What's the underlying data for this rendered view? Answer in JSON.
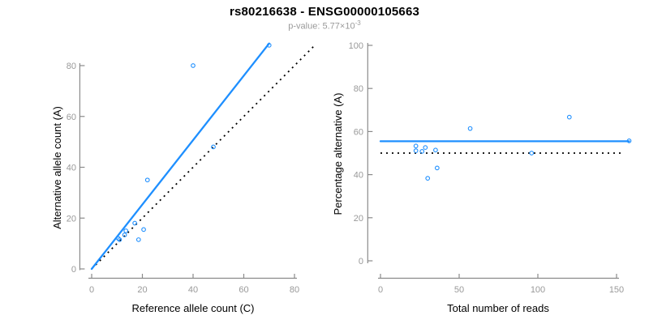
{
  "header": {
    "title": "rs80216638 - ENSG00000105663",
    "pvalue_label": "p-value: ",
    "pvalue_mantissa": "5.77",
    "pvalue_times": "×",
    "pvalue_base": "10",
    "pvalue_exponent": "-3"
  },
  "colors": {
    "accent_blue": "#1e8fff",
    "axis_line_gray": "#8a8a8a",
    "tick_label_gray": "#999999",
    "axis_title_black": "#000000",
    "identity_line_black": "#000000",
    "background": "#ffffff"
  },
  "chart_data": [
    {
      "id": "allele-counts-scatter",
      "type": "scatter",
      "xlabel": "Reference allele count (C)",
      "ylabel": "Alternative allele count (A)",
      "xticks": [
        0,
        20,
        40,
        60,
        80
      ],
      "yticks": [
        0,
        20,
        40,
        60,
        80
      ],
      "xlim": [
        0,
        88
      ],
      "ylim": [
        0,
        90
      ],
      "grid": false,
      "points": [
        [
          40,
          80
        ],
        [
          70,
          88
        ],
        [
          48,
          48
        ],
        [
          22,
          35
        ],
        [
          17,
          18
        ],
        [
          20.5,
          15.5
        ],
        [
          13.5,
          15
        ],
        [
          13,
          13.4
        ],
        [
          10.5,
          12
        ],
        [
          18.5,
          11.5
        ],
        [
          11,
          11.5
        ]
      ],
      "fit_line": {
        "style": "solid",
        "x1": 0,
        "y1": 0,
        "x2": 70,
        "y2": 88.7
      },
      "identity_line": {
        "style": "dotted",
        "x1": 0,
        "y1": 0,
        "x2": 88,
        "y2": 88
      }
    },
    {
      "id": "percentage-vs-reads-scatter",
      "type": "scatter",
      "xlabel": "Total number of reads",
      "ylabel": "Percentage alternative (A)",
      "xticks": [
        0,
        50,
        100,
        150
      ],
      "yticks": [
        0,
        20,
        40,
        60,
        80,
        100
      ],
      "xlim": [
        0,
        158
      ],
      "ylim": [
        0,
        100
      ],
      "grid": false,
      "points": [
        [
          120,
          66.7
        ],
        [
          158,
          55.7
        ],
        [
          96,
          50.0
        ],
        [
          57,
          61.4
        ],
        [
          35,
          51.4
        ],
        [
          36,
          43.1
        ],
        [
          28.5,
          52.6
        ],
        [
          26.4,
          50.8
        ],
        [
          22.5,
          53.3
        ],
        [
          30,
          38.3
        ],
        [
          22.5,
          51.1
        ]
      ],
      "fit_line": {
        "style": "solid",
        "x1": 0,
        "y1": 55.5,
        "x2": 158,
        "y2": 55.5
      },
      "identity_line": {
        "style": "dotted",
        "x1": 0,
        "y1": 50,
        "x2": 155,
        "y2": 50
      }
    }
  ]
}
